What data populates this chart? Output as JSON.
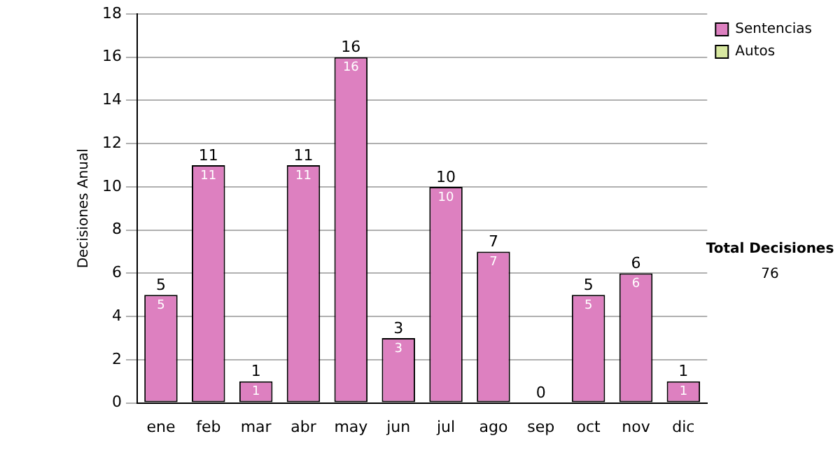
{
  "chart_data": {
    "type": "bar",
    "ylabel": "Decisiones Anual",
    "categories": [
      "ene",
      "feb",
      "mar",
      "abr",
      "may",
      "jun",
      "jul",
      "ago",
      "sep",
      "oct",
      "nov",
      "dic"
    ],
    "series": [
      {
        "name": "Sentencias",
        "color": "#dd80c0",
        "values": [
          5,
          11,
          1,
          11,
          16,
          3,
          10,
          7,
          0,
          5,
          6,
          1
        ],
        "value_labels": [
          "5",
          "11",
          "1",
          "11",
          "16",
          "3",
          "10",
          "7",
          null,
          "5",
          "6",
          "1"
        ]
      },
      {
        "name": "Autos",
        "color": "#d8e8a0",
        "values": [
          0,
          0,
          0,
          0,
          0,
          0,
          0,
          0,
          0,
          0,
          0,
          0
        ],
        "value_labels": [
          null,
          null,
          null,
          null,
          null,
          null,
          null,
          null,
          null,
          null,
          null,
          null
        ]
      }
    ],
    "stacked": true,
    "totals": [
      "5",
      "11",
      "1",
      "11",
      "16",
      "3",
      "10",
      "7",
      "0",
      "5",
      "6",
      "1"
    ],
    "ylim": [
      0,
      18
    ],
    "yticks": [
      0,
      2,
      4,
      6,
      8,
      10,
      12,
      14,
      16,
      18
    ],
    "grid": "y",
    "legend": "right",
    "annotations": [
      "Total Decisiones",
      "76"
    ]
  }
}
